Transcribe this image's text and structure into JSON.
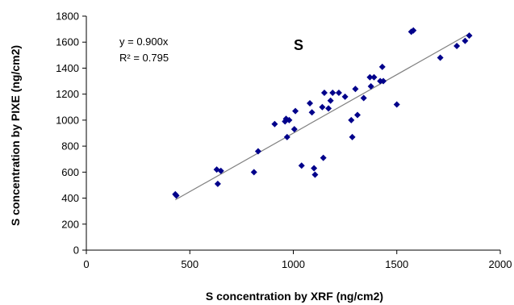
{
  "chart_data": {
    "type": "scatter",
    "title": "S",
    "xlabel": "S concentration by XRF (ng/cm2)",
    "ylabel": "S concentration by PIXE (ng/cm2)",
    "xlim": [
      0,
      2000
    ],
    "ylim": [
      0,
      1800
    ],
    "xticks": [
      0,
      500,
      1000,
      1500,
      2000
    ],
    "yticks": [
      0,
      200,
      400,
      600,
      800,
      1000,
      1200,
      1400,
      1600,
      1800
    ],
    "grid": false,
    "legend": "none",
    "annotations": [
      "y = 0.900x",
      "R² = 0.795"
    ],
    "marker_color": "#00008B",
    "trendline_color": "#808080",
    "trendline": {
      "slope": 0.9,
      "x_range": [
        430,
        1850
      ]
    },
    "series": [
      {
        "x": [
          430,
          435,
          630,
          635,
          650,
          810,
          830,
          910,
          960,
          965,
          970,
          980,
          1005,
          1010,
          1040,
          1080,
          1090,
          1100,
          1105,
          1140,
          1145,
          1150,
          1170,
          1180,
          1190,
          1220,
          1250,
          1280,
          1285,
          1300,
          1310,
          1340,
          1370,
          1375,
          1390,
          1420,
          1430,
          1435,
          1500,
          1570,
          1580,
          1710,
          1790,
          1830,
          1850
        ],
        "y": [
          430,
          420,
          620,
          510,
          610,
          600,
          760,
          970,
          990,
          1010,
          870,
          1000,
          930,
          1070,
          650,
          1130,
          1060,
          630,
          580,
          1100,
          710,
          1210,
          1090,
          1150,
          1210,
          1210,
          1180,
          1000,
          870,
          1240,
          1040,
          1170,
          1330,
          1260,
          1330,
          1300,
          1410,
          1300,
          1120,
          1680,
          1690,
          1480,
          1570,
          1610,
          1650
        ]
      }
    ]
  }
}
